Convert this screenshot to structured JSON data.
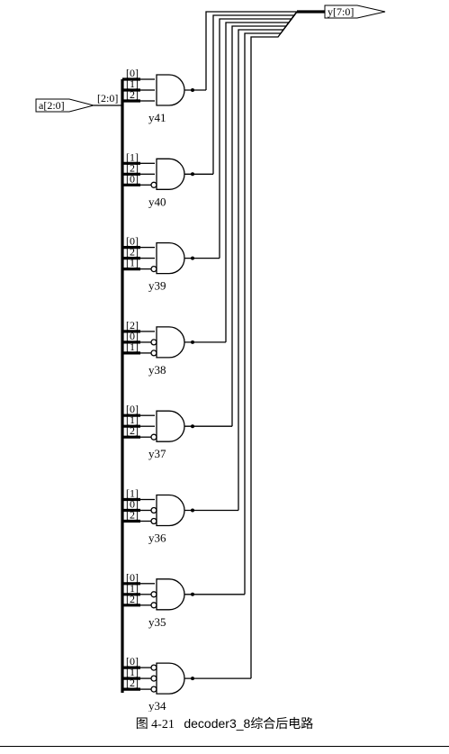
{
  "input_port": {
    "label": "a[2:0]"
  },
  "output_port": {
    "label": "y[7:0]"
  },
  "input_bus_label": "[2:0]",
  "gates": [
    {
      "name": "y41",
      "bits": [
        "[0]",
        "[1]",
        "[2]"
      ],
      "inverted": [
        false,
        false,
        false
      ]
    },
    {
      "name": "y40",
      "bits": [
        "[1]",
        "[2]",
        "[0]"
      ],
      "inverted": [
        false,
        false,
        true
      ]
    },
    {
      "name": "y39",
      "bits": [
        "[0]",
        "[2]",
        "[1]"
      ],
      "inverted": [
        false,
        false,
        true
      ]
    },
    {
      "name": "y38",
      "bits": [
        "[2]",
        "[0]",
        "[1]"
      ],
      "inverted": [
        false,
        true,
        true
      ]
    },
    {
      "name": "y37",
      "bits": [
        "[0]",
        "[1]",
        "[2]"
      ],
      "inverted": [
        false,
        false,
        true
      ]
    },
    {
      "name": "y36",
      "bits": [
        "[1]",
        "[0]",
        "[2]"
      ],
      "inverted": [
        false,
        true,
        true
      ]
    },
    {
      "name": "y35",
      "bits": [
        "[0]",
        "[1]",
        "[2]"
      ],
      "inverted": [
        false,
        true,
        true
      ]
    },
    {
      "name": "y34",
      "bits": [
        "[0]",
        "[1]",
        "[2]"
      ],
      "inverted": [
        true,
        true,
        true
      ]
    }
  ],
  "caption": {
    "prefix": "图 4-21",
    "code": "decoder3_8",
    "suffix": "综合后电路"
  }
}
